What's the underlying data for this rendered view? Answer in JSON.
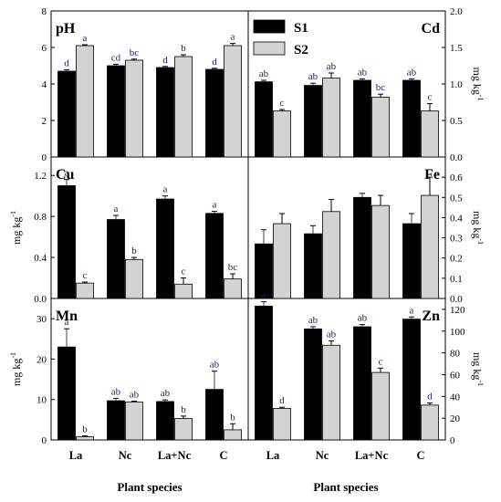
{
  "legend": {
    "s1_label": "S1",
    "s2_label": "S2",
    "s1_color": "#000000",
    "s2_color": "#d3d3d3"
  },
  "x_axis": {
    "categories": [
      "La",
      "Nc",
      "La+Nc",
      "C"
    ],
    "title_left": "Plant species",
    "title_right": "Plant species"
  },
  "chart_data": [
    {
      "type": "bar",
      "title": "pH",
      "ylabel": "",
      "ylim": [
        0,
        8
      ],
      "yticks": [
        "0",
        "2",
        "4",
        "6",
        "8"
      ],
      "categories": [
        "La",
        "Nc",
        "La+Nc",
        "C"
      ],
      "series": [
        {
          "name": "S1",
          "values": [
            4.7,
            5.0,
            4.9,
            4.8
          ],
          "errors": [
            0.08,
            0.08,
            0.06,
            0.06
          ],
          "letters": [
            "d",
            "cd",
            "d",
            "d"
          ]
        },
        {
          "name": "S2",
          "values": [
            6.1,
            5.3,
            5.5,
            6.1
          ],
          "errors": [
            0.05,
            0.06,
            0.1,
            0.12
          ],
          "letters": [
            "a",
            "bc",
            "b",
            "a"
          ]
        }
      ]
    },
    {
      "type": "bar",
      "title": "Cd",
      "ylabel": "mg kg-1",
      "ylim": [
        0,
        2.0
      ],
      "yticks": [
        "0.0",
        "0.5",
        "1.0",
        "1.5",
        "2.0"
      ],
      "categories": [
        "La",
        "Nc",
        "La+Nc",
        "C"
      ],
      "series": [
        {
          "name": "S1",
          "values": [
            1.03,
            0.98,
            1.05,
            1.05
          ],
          "errors": [
            0.02,
            0.03,
            0.02,
            0.02
          ],
          "letters": [
            "ab",
            "ab",
            "ab",
            "ab"
          ]
        },
        {
          "name": "S2",
          "values": [
            0.63,
            1.08,
            0.82,
            0.63
          ],
          "errors": [
            0.02,
            0.07,
            0.04,
            0.1
          ],
          "letters": [
            "c",
            "ab",
            "bc",
            "c"
          ]
        }
      ]
    },
    {
      "type": "bar",
      "title": "Cu",
      "ylabel": "mg kg-1",
      "ylim": [
        0,
        1.38
      ],
      "yticks": [
        "0.0",
        "0.4",
        "0.8",
        "1.2"
      ],
      "categories": [
        "La",
        "Nc",
        "La+Nc",
        "C"
      ],
      "series": [
        {
          "name": "S1",
          "values": [
            1.1,
            0.77,
            0.97,
            0.83
          ],
          "errors": [
            0.06,
            0.04,
            0.03,
            0.02
          ],
          "letters": [
            "a",
            "a",
            "a",
            "a"
          ]
        },
        {
          "name": "S2",
          "values": [
            0.15,
            0.38,
            0.14,
            0.19
          ],
          "errors": [
            0.01,
            0.02,
            0.06,
            0.05
          ],
          "letters": [
            "c",
            "b",
            "c",
            "bc"
          ]
        }
      ]
    },
    {
      "type": "bar",
      "title": "Fe",
      "ylabel": "mg kg-1",
      "ylim": [
        0,
        0.7
      ],
      "yticks": [
        "0.0",
        "0.1",
        "0.2",
        "0.3",
        "0.4",
        "0.5",
        "0.6"
      ],
      "categories": [
        "La",
        "Nc",
        "La+Nc",
        "C"
      ],
      "series": [
        {
          "name": "S1",
          "values": [
            0.27,
            0.32,
            0.5,
            0.37
          ],
          "errors": [
            0.07,
            0.04,
            0.02,
            0.05
          ],
          "letters": [
            "",
            "",
            "",
            ""
          ]
        },
        {
          "name": "S2",
          "values": [
            0.37,
            0.43,
            0.46,
            0.51
          ],
          "errors": [
            0.05,
            0.06,
            0.05,
            0.09
          ],
          "letters": [
            "",
            "",
            "",
            ""
          ]
        }
      ]
    },
    {
      "type": "bar",
      "title": "Mn",
      "ylabel": "mg kg-1",
      "ylim": [
        0,
        35
      ],
      "yticks": [
        "0",
        "10",
        "20",
        "30"
      ],
      "categories": [
        "La",
        "Nc",
        "La+Nc",
        "C"
      ],
      "series": [
        {
          "name": "S1",
          "values": [
            23.0,
            9.7,
            9.5,
            12.5
          ],
          "errors": [
            4.5,
            0.6,
            0.4,
            4.5
          ],
          "letters": [
            "a",
            "ab",
            "ab",
            "ab"
          ]
        },
        {
          "name": "S2",
          "values": [
            0.8,
            9.4,
            5.3,
            2.5
          ],
          "errors": [
            0.2,
            0.2,
            0.6,
            1.5
          ],
          "letters": [
            "b",
            "ab",
            "b",
            "b"
          ]
        }
      ]
    },
    {
      "type": "bar",
      "title": "Zn",
      "ylabel": "mg kg-1",
      "ylim": [
        0,
        130
      ],
      "yticks": [
        "0",
        "20",
        "40",
        "60",
        "80",
        "100",
        "120"
      ],
      "categories": [
        "La",
        "Nc",
        "La+Nc",
        "C"
      ],
      "series": [
        {
          "name": "S1",
          "values": [
            123,
            102,
            104,
            111
          ],
          "errors": [
            4,
            2,
            2,
            2
          ],
          "letters": [
            "a",
            "ab",
            "ab",
            "a"
          ]
        },
        {
          "name": "S2",
          "values": [
            29,
            87,
            62,
            32
          ],
          "errors": [
            1,
            4,
            4,
            2
          ],
          "letters": [
            "d",
            "ab",
            "c",
            "d"
          ]
        }
      ]
    }
  ]
}
